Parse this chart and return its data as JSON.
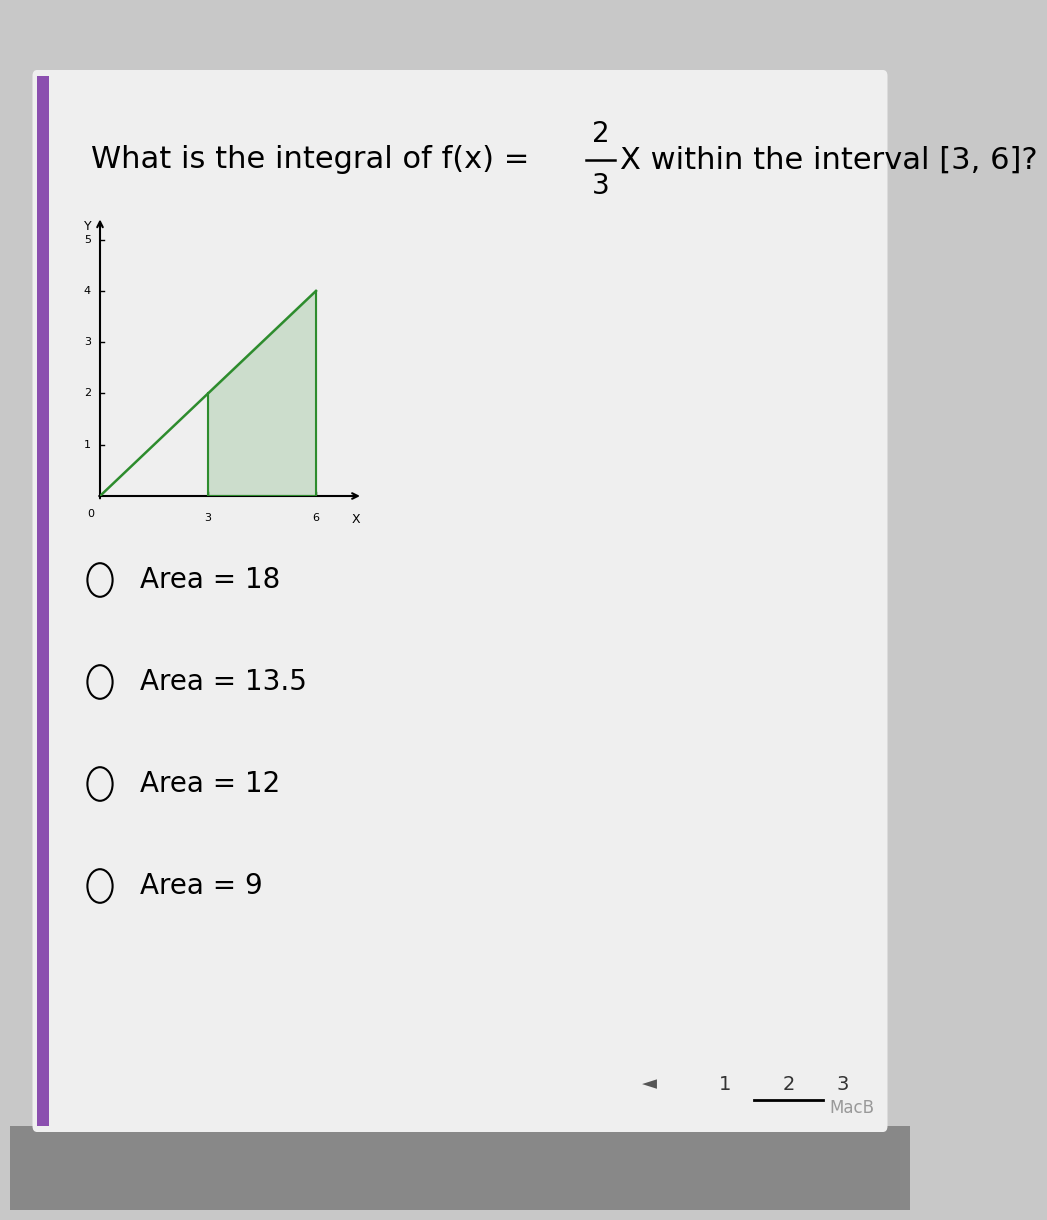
{
  "title_part1": "What is the integral of f(x) = ",
  "fraction_num": "2",
  "fraction_den": "3",
  "title_part2": "X within the interval [3, 6]?",
  "bg_color": "#c8c8c8",
  "card_color": "#efefef",
  "purple_bar_color": "#8b4faf",
  "graph_xlim": [
    0,
    7.5
  ],
  "graph_ylim": [
    0,
    5.5
  ],
  "line_color": "#2d8c2d",
  "fill_color": "#2d8c2d",
  "fill_alpha": 0.18,
  "options": [
    "Area = 18",
    "Area = 13.5",
    "Area = 12",
    "Area = 9"
  ],
  "option_fontsize": 20,
  "title_fontsize": 22,
  "page_numbers": [
    "1",
    "2",
    "3"
  ],
  "current_page": "2",
  "macb_text": "MacB"
}
